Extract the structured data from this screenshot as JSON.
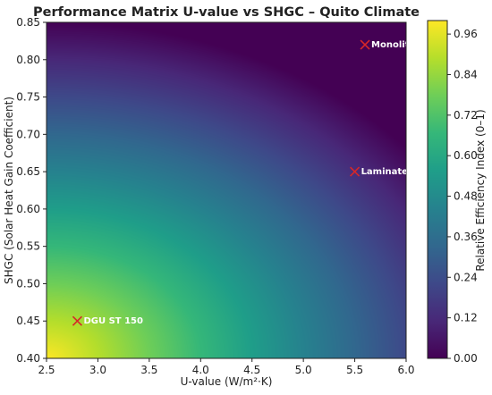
{
  "chart_data": {
    "type": "heatmap",
    "title": "Performance Matrix U-value vs SHGC – Quito Climate",
    "xlabel": "U-value (W/m²·K)",
    "ylabel": "SHGC (Solar Heat Gain Coefficient)",
    "xlim": [
      2.5,
      6.0
    ],
    "ylim": [
      0.4,
      0.85
    ],
    "x_ticks": [
      "2.5",
      "3.0",
      "3.5",
      "4.0",
      "4.5",
      "5.0",
      "5.5",
      "6.0"
    ],
    "y_ticks": [
      "0.40",
      "0.45",
      "0.50",
      "0.55",
      "0.60",
      "0.65",
      "0.70",
      "0.75",
      "0.80",
      "0.85"
    ],
    "colorbar": {
      "label": "Relative Efficiency Index (0–1)",
      "range": [
        0,
        1
      ],
      "ticks": [
        "0.00",
        "0.12",
        "0.24",
        "0.36",
        "0.48",
        "0.60",
        "0.72",
        "0.84",
        "0.96"
      ],
      "colormap": "viridis"
    },
    "points": [
      {
        "label": "DGU ST 150",
        "x": 2.8,
        "y": 0.45
      },
      {
        "label": "Laminate",
        "x": 5.5,
        "y": 0.65
      },
      {
        "label": "Monolit",
        "x": 5.6,
        "y": 0.82
      }
    ],
    "marker": {
      "symbol": "x",
      "color": "#d62728"
    }
  }
}
